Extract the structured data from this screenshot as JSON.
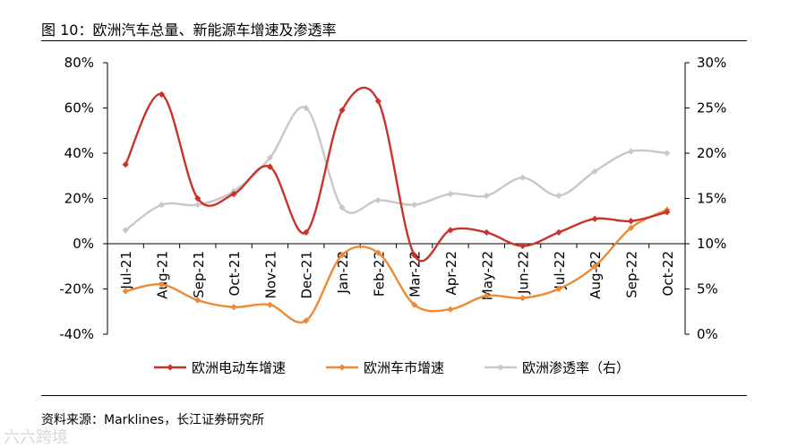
{
  "title": "图 10：欧洲汽车总量、新能源车增速及渗透率",
  "source": "资料来源：Marklines，长江证券研究所",
  "watermark": "六六跨境",
  "chart_data": {
    "type": "line",
    "categories": [
      "Jul-21",
      "Aug-21",
      "Sep-21",
      "Oct-21",
      "Nov-21",
      "Dec-21",
      "Jan-22",
      "Feb-22",
      "Mar-22",
      "Apr-22",
      "May-22",
      "Jun-22",
      "Jul-22",
      "Aug-22",
      "Sep-22",
      "Oct-22"
    ],
    "left_axis": {
      "ticks": [
        "80%",
        "60%",
        "40%",
        "20%",
        "0%",
        "-20%",
        "-40%"
      ],
      "ylim": [
        -40,
        80
      ]
    },
    "right_axis": {
      "ticks": [
        "30%",
        "25%",
        "20%",
        "15%",
        "10%",
        "5%",
        "0%"
      ],
      "ylim": [
        0,
        30
      ]
    },
    "series": [
      {
        "name": "欧洲电动车增速",
        "axis": "left",
        "color": "#c8332b",
        "values": [
          35,
          66,
          20,
          22,
          34,
          5,
          59,
          63,
          -5,
          6,
          5,
          -1,
          5,
          11,
          10,
          14
        ]
      },
      {
        "name": "欧洲车市增速",
        "axis": "left",
        "color": "#ee8a35",
        "values": [
          -21,
          -18,
          -25,
          -28,
          -27,
          -34,
          -5,
          -4,
          -27,
          -29,
          -23,
          -24,
          -20,
          -10,
          7,
          15
        ]
      },
      {
        "name": "欧洲渗透率（右）",
        "axis": "right",
        "color": "#c8c8c8",
        "values": [
          11.5,
          14.3,
          14.3,
          15.8,
          19.5,
          25,
          14,
          14.8,
          14.3,
          15.5,
          15.3,
          17.3,
          15.3,
          18,
          20.2,
          20
        ]
      }
    ],
    "legend_position": "bottom"
  }
}
